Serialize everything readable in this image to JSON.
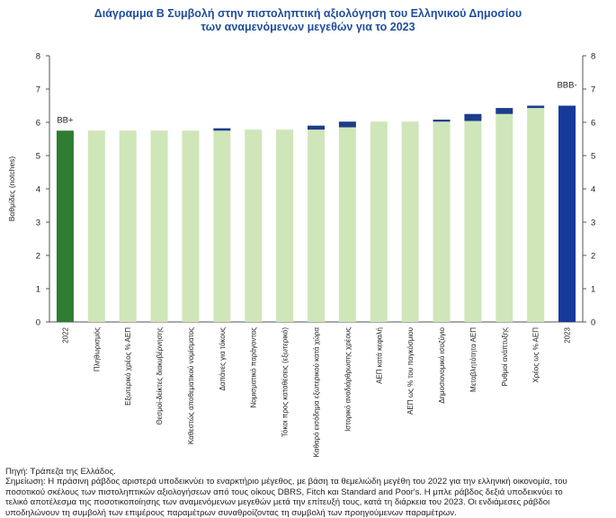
{
  "title_line1": "Διάγραμμα Β Συμβολή στην πιστοληπτική αξιολόγηση του Ελληνικού Δημοσίου",
  "title_line2": "των αναμενόμενων μεγεθών για το 2023",
  "notes": {
    "source": "Πηγή: Τράπεζα της Ελλάδος.",
    "line1": "Σημείωση: Η πράσινη ράβδος αριστερά υποδεικνύει το εναρκτήριο μέγεθος, με βάση τα θεμελιώδη μεγέθη του 2022 για την ελληνική οικονομία, του",
    "line2": "ποσοτικού σκέλους των πιστοληπτικών αξιολογήσεων από τους οίκους DBRS, Fitch και Standard and Poor's. Η μπλε ράβδος δεξιά υποδεικνύει το",
    "line3": "τελικό αποτέλεσμα της ποσοτικοποίησης των αναμενόμενων μεγεθών μετά την επίτευξή τους, κατά τη διάρκεια του 2023. Οι ενδιάμεσες ράβδοι",
    "line4": "υποδηλώνουν τη συμβολή των επιμέρους παραμέτρων συναθροίζοντας τη συμβολή των προηγούμενων παραμέτρων."
  },
  "chart_data": {
    "type": "bar",
    "subtype": "waterfall",
    "ylabel": "Βαθμίδες (notches)",
    "ylim": [
      0,
      8
    ],
    "yticks": [
      0,
      1,
      2,
      3,
      4,
      5,
      6,
      7,
      8
    ],
    "secondary_yaxis": true,
    "grid": false,
    "start_label": "BB+",
    "end_label": "BBB-",
    "categories": [
      "2022",
      "Πληθωρισμός",
      "Εξωτερικό χρέος % ΑΕΠ",
      "Θεσμοί-δείκτες διακυβέρνησης",
      "Καθεστώς αποθεματικού νομίσματος",
      "Δαπάνες για τόκους",
      "Νομισματικό παράγοντας",
      "Τόκοι προς καταθέσεις (εξωτερικό)",
      "Καθαρό εισόδημα εξωτερικού κατά χώρα",
      "Ιστορικό αναδιάρθρωσης χρέους",
      "ΑΕΠ κατά κεφαλή",
      "ΑΕΠ ως % του παγκόσμιου",
      "Δημοσιονομικό ισοζύγιο",
      "Μεταβλητότητα ΑΕΠ",
      "Ρυθμοί ανάπτυξης",
      "Χρέος ως % ΑΕΠ",
      "2023"
    ],
    "base": [
      5.75,
      5.75,
      5.75,
      5.75,
      5.75,
      5.75,
      5.78,
      5.78,
      5.78,
      5.85,
      6.02,
      6.02,
      6.02,
      6.04,
      6.25,
      6.43,
      6.5
    ],
    "increase": [
      0,
      0,
      0,
      0,
      0,
      0.07,
      0,
      0,
      0.12,
      0.17,
      0,
      0,
      0.06,
      0.21,
      0.18,
      0.07,
      0
    ],
    "bar_kind": [
      "start",
      "step",
      "step",
      "step",
      "step",
      "step",
      "step",
      "step",
      "step",
      "step",
      "step",
      "step",
      "step",
      "step",
      "step",
      "step",
      "end"
    ],
    "colors": {
      "start": "#2e7d32",
      "step": "#cfe6b9",
      "increase": "#1c3c8c",
      "end": "#16399a",
      "axis": "#555555",
      "title": "#1f4e9c"
    }
  }
}
